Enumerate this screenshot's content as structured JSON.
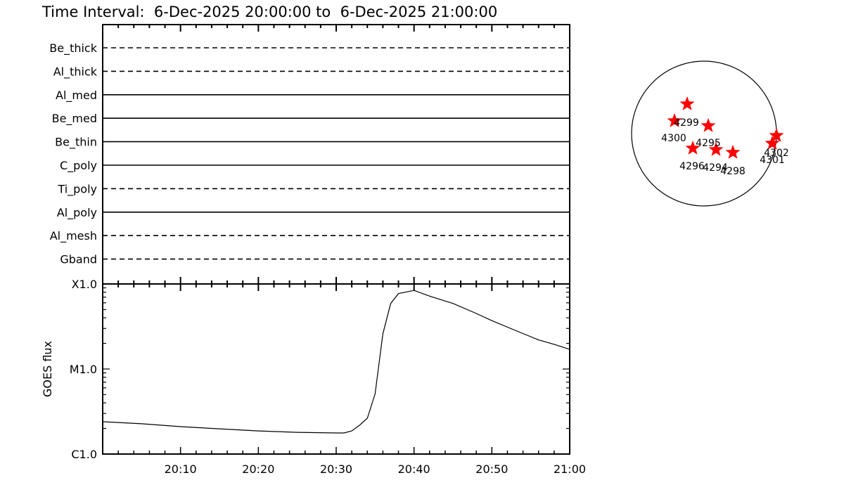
{
  "title": "Time Interval:  6-Dec-2025 20:00:00 to  6-Dec-2025 21:00:00",
  "chart_data": [
    {
      "type": "table",
      "panel": "attenuator/filter status",
      "rows": [
        {
          "label": "Be_thick",
          "style": "dashed"
        },
        {
          "label": "Al_thick",
          "style": "dashed"
        },
        {
          "label": "Al_med",
          "style": "solid"
        },
        {
          "label": "Be_med",
          "style": "solid"
        },
        {
          "label": "Be_thin",
          "style": "solid"
        },
        {
          "label": "C_poly",
          "style": "solid"
        },
        {
          "label": "Ti_poly",
          "style": "dashed"
        },
        {
          "label": "Al_poly",
          "style": "solid"
        },
        {
          "label": "Al_mesh",
          "style": "dashed"
        },
        {
          "label": "Gband",
          "style": "dashed"
        }
      ]
    },
    {
      "type": "line",
      "ylabel": "GOES flux",
      "yscale": "log",
      "ylim": [
        1e-06,
        0.0001
      ],
      "yticks": [
        {
          "value": 1e-06,
          "label": "C1.0"
        },
        {
          "value": 1e-05,
          "label": "M1.0"
        },
        {
          "value": 0.0001,
          "label": "X1.0"
        }
      ],
      "xlim": [
        "20:00",
        "21:00"
      ],
      "xticks": [
        "20:10",
        "20:20",
        "20:30",
        "20:40",
        "20:50",
        "21:00"
      ],
      "x": [
        "20:00",
        "20:05",
        "20:10",
        "20:15",
        "20:20",
        "20:25",
        "20:30",
        "20:31",
        "20:32",
        "20:33",
        "20:34",
        "20:35",
        "20:36",
        "20:37",
        "20:38",
        "20:40",
        "20:42",
        "20:45",
        "20:48",
        "20:50",
        "20:53",
        "20:56",
        "20:58",
        "21:00"
      ],
      "values": [
        2.4e-06,
        2.27e-06,
        2.1e-06,
        1.98e-06,
        1.87e-06,
        1.8e-06,
        1.77e-06,
        1.77e-06,
        1.87e-06,
        2.18e-06,
        2.64e-06,
        5.1e-06,
        2.6e-05,
        5.9e-05,
        7.7e-05,
        8.4e-05,
        7.2e-05,
        5.9e-05,
        4.5e-05,
        3.7e-05,
        2.85e-05,
        2.2e-05,
        1.95e-05,
        1.7e-05
      ],
      "color": "#000000"
    },
    {
      "type": "scatter",
      "panel": "solar disk active regions",
      "marker": "star",
      "marker_color": "#ff0000",
      "regions": [
        "4299",
        "4300",
        "4295",
        "4296",
        "4294",
        "4298",
        "4302",
        "4301"
      ]
    }
  ]
}
